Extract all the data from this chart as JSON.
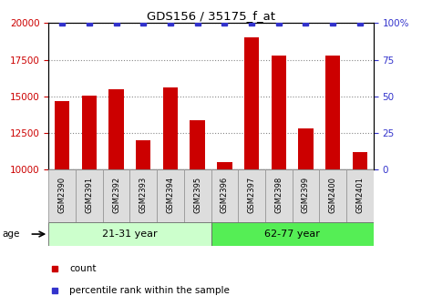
{
  "title": "GDS156 / 35175_f_at",
  "samples": [
    "GSM2390",
    "GSM2391",
    "GSM2392",
    "GSM2393",
    "GSM2394",
    "GSM2395",
    "GSM2396",
    "GSM2397",
    "GSM2398",
    "GSM2399",
    "GSM2400",
    "GSM2401"
  ],
  "counts": [
    14700,
    15050,
    15500,
    12000,
    15600,
    13400,
    10500,
    19000,
    17800,
    12800,
    17800,
    11200
  ],
  "percentiles": [
    100,
    100,
    100,
    100,
    100,
    100,
    100,
    100,
    100,
    100,
    100,
    100
  ],
  "ylim_left": [
    10000,
    20000
  ],
  "ylim_right": [
    0,
    100
  ],
  "yticks_left": [
    10000,
    12500,
    15000,
    17500,
    20000
  ],
  "yticks_right": [
    0,
    25,
    50,
    75,
    100
  ],
  "bar_color": "#CC0000",
  "dot_color": "#3333CC",
  "group1_label": "21-31 year",
  "group1_indices": [
    0,
    1,
    2,
    3,
    4,
    5
  ],
  "group2_label": "62-77 year",
  "group2_indices": [
    6,
    7,
    8,
    9,
    10,
    11
  ],
  "group1_color": "#CCFFCC",
  "group2_color": "#55EE55",
  "age_label": "age",
  "legend_count_label": "count",
  "legend_percentile_label": "percentile rank within the sample",
  "bar_width": 0.55,
  "base_value": 10000,
  "sample_box_color": "#DDDDDD",
  "sample_box_edge": "#999999"
}
